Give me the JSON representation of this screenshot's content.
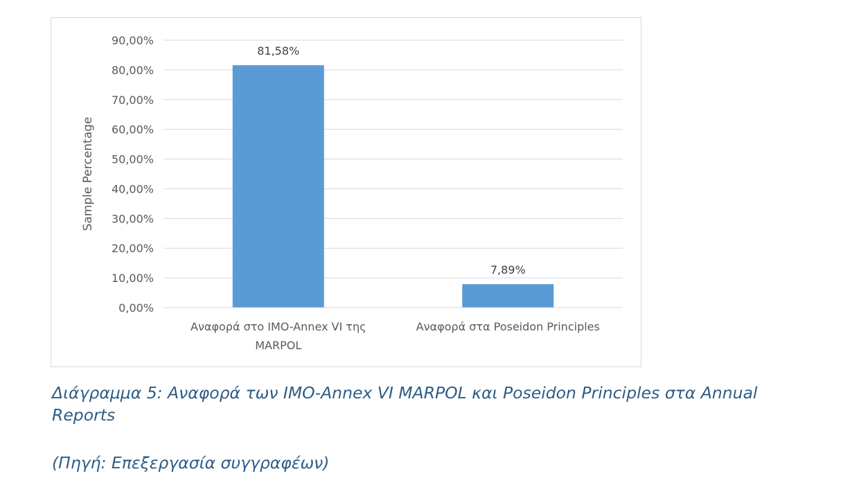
{
  "chart_data": {
    "type": "bar",
    "categories": [
      [
        "Αναφορά στο IMO-Annex VI της",
        "MARPOL"
      ],
      [
        "Αναφορά στα Poseidon Principles"
      ]
    ],
    "values": [
      81.58,
      7.89
    ],
    "data_labels": [
      "81,58%",
      "7,89%"
    ],
    "ylabel": "Sample Percentage",
    "ylim": [
      0,
      90
    ],
    "yticks": [
      0,
      10,
      20,
      30,
      40,
      50,
      60,
      70,
      80,
      90
    ],
    "ytick_labels": [
      "0,00%",
      "10,00%",
      "20,00%",
      "30,00%",
      "40,00%",
      "50,00%",
      "60,00%",
      "70,00%",
      "80,00%",
      "90,00%"
    ],
    "grid": true,
    "legend": "none",
    "bar_color": "#5b9bd5"
  },
  "caption": {
    "line1": "Διάγραμμα 5: Αναφορά των IMO-Annex VI MARPOL και Poseidon Principles στα Annual",
    "line2": "Reports",
    "source": "(Πηγή: Επεξεργασία συγγραφέων)"
  }
}
